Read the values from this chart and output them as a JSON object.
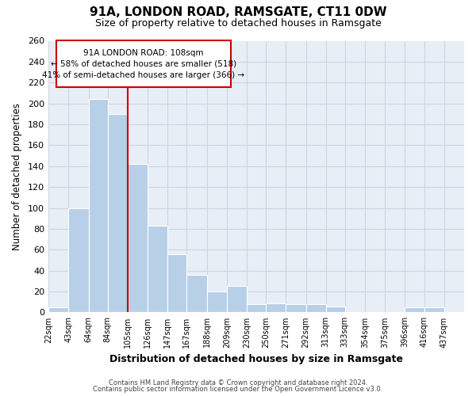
{
  "title": "91A, LONDON ROAD, RAMSGATE, CT11 0DW",
  "subtitle": "Size of property relative to detached houses in Ramsgate",
  "xlabel": "Distribution of detached houses by size in Ramsgate",
  "ylabel": "Number of detached properties",
  "bar_left_edges": [
    22,
    43,
    64,
    84,
    105,
    126,
    147,
    167,
    188,
    209,
    230,
    250,
    271,
    292,
    313,
    333,
    354,
    375,
    396,
    416
  ],
  "bar_widths": [
    21,
    21,
    20,
    21,
    21,
    21,
    20,
    21,
    21,
    21,
    20,
    21,
    21,
    21,
    20,
    21,
    21,
    21,
    20,
    21
  ],
  "bar_heights": [
    5,
    100,
    204,
    190,
    142,
    83,
    56,
    36,
    20,
    25,
    8,
    9,
    8,
    8,
    6,
    0,
    0,
    0,
    5,
    5
  ],
  "bar_color": "#b8cfe8",
  "bar_edge_color": "#ffffff",
  "subject_line_x": 105,
  "subject_line_color": "#cc0000",
  "annotation_text_line1": "91A LONDON ROAD: 108sqm",
  "annotation_text_line2": "← 58% of detached houses are smaller (518)",
  "annotation_text_line3": "41% of semi-detached houses are larger (366) →",
  "annotation_box_color": "#ffffff",
  "annotation_box_edge": "#cc0000",
  "xlim_min": 22,
  "xlim_max": 458,
  "ylim_min": 0,
  "ylim_max": 260,
  "yticks": [
    0,
    20,
    40,
    60,
    80,
    100,
    120,
    140,
    160,
    180,
    200,
    220,
    240,
    260
  ],
  "xtick_labels": [
    "22sqm",
    "43sqm",
    "64sqm",
    "84sqm",
    "105sqm",
    "126sqm",
    "147sqm",
    "167sqm",
    "188sqm",
    "209sqm",
    "230sqm",
    "250sqm",
    "271sqm",
    "292sqm",
    "313sqm",
    "333sqm",
    "354sqm",
    "375sqm",
    "396sqm",
    "416sqm",
    "437sqm"
  ],
  "xtick_positions": [
    22,
    43,
    64,
    84,
    105,
    126,
    147,
    167,
    188,
    209,
    230,
    250,
    271,
    292,
    313,
    333,
    354,
    375,
    396,
    416,
    437
  ],
  "footer_line1": "Contains HM Land Registry data © Crown copyright and database right 2024.",
  "footer_line2": "Contains public sector information licensed under the Open Government Licence v3.0.",
  "grid_color": "#ccd5e5",
  "background_color": "#e8eef5",
  "title_fontsize": 11,
  "subtitle_fontsize": 9
}
